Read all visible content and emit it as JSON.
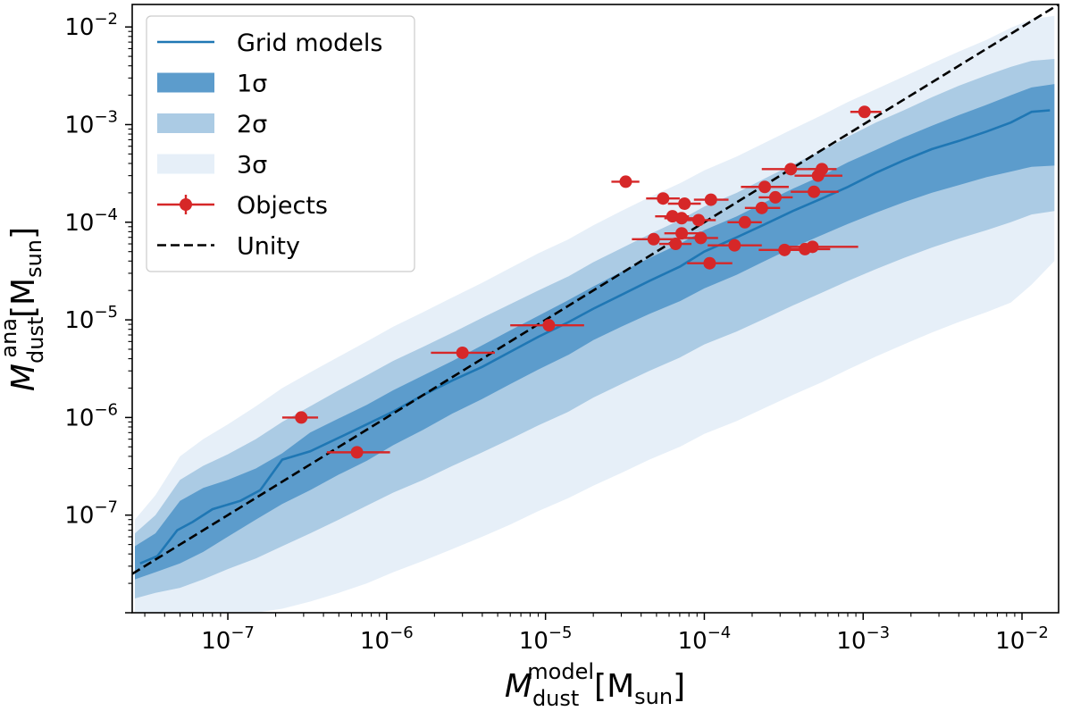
{
  "chart_data": {
    "type": "scatter",
    "xscale": "log",
    "yscale": "log",
    "xlim": [
      2.5e-08,
      0.017
    ],
    "ylim": [
      1e-08,
      0.017
    ],
    "grid": false,
    "legend_position": "top-left",
    "xlabel": {
      "symbol": "M",
      "sub": "dust",
      "sup": "model",
      "unit_open": "[M",
      "unit_sub": "sun",
      "unit_close": "]"
    },
    "ylabel": {
      "symbol": "M",
      "sub": "dust",
      "sup": "ana",
      "unit_open": "[M",
      "unit_sub": "sun",
      "unit_close": "]"
    },
    "xticks": [
      {
        "value": 1e-07,
        "base": "10",
        "exp": "−7"
      },
      {
        "value": 1e-06,
        "base": "10",
        "exp": "−6"
      },
      {
        "value": 1e-05,
        "base": "10",
        "exp": "−5"
      },
      {
        "value": 0.0001,
        "base": "10",
        "exp": "−4"
      },
      {
        "value": 0.001,
        "base": "10",
        "exp": "−3"
      },
      {
        "value": 0.01,
        "base": "10",
        "exp": "−2"
      }
    ],
    "yticks": [
      {
        "value": 1e-07,
        "base": "10",
        "exp": "−7"
      },
      {
        "value": 1e-06,
        "base": "10",
        "exp": "−6"
      },
      {
        "value": 1e-05,
        "base": "10",
        "exp": "−5"
      },
      {
        "value": 0.0001,
        "base": "10",
        "exp": "−4"
      },
      {
        "value": 0.001,
        "base": "10",
        "exp": "−3"
      },
      {
        "value": 0.01,
        "base": "10",
        "exp": "−2"
      }
    ],
    "legend": [
      {
        "key": "grid",
        "label": "Grid models",
        "kind": "line"
      },
      {
        "key": "s1",
        "label": "1σ",
        "kind": "band"
      },
      {
        "key": "s2",
        "label": "2σ",
        "kind": "band"
      },
      {
        "key": "s3",
        "label": "3σ",
        "kind": "band"
      },
      {
        "key": "objects",
        "label": "Objects",
        "kind": "errorbar"
      },
      {
        "key": "unity",
        "label": "Unity",
        "kind": "dashed"
      }
    ],
    "colors": {
      "grid_line": "#1f77b4",
      "band_1sigma": "#5c9ccc",
      "band_2sigma": "#abcbe4",
      "band_3sigma": "#e6eff8",
      "objects": "#d62728",
      "unity": "#000000"
    },
    "series": [
      {
        "key": "grid",
        "x": [
          2.8e-08,
          3.6e-08,
          4.8e-08,
          6e-08,
          8e-08,
          1.2e-07,
          1.6e-07,
          2.2e-07,
          3.3e-07,
          5e-07,
          7.5e-07,
          1.1e-06,
          1.7e-06,
          2.6e-06,
          4e-06,
          6e-06,
          9e-06,
          1.4e-05,
          2e-05,
          3e-05,
          4.5e-05,
          7e-05,
          0.0001,
          0.00016,
          0.00024,
          0.00036,
          0.00055,
          0.0008,
          0.0012,
          0.0018,
          0.0027,
          0.004,
          0.006,
          0.0085,
          0.0115,
          0.015
        ],
        "y": [
          3.2e-08,
          3.8e-08,
          7e-08,
          8.5e-08,
          1.15e-07,
          1.4e-07,
          1.8e-07,
          3.7e-07,
          4.5e-07,
          6.2e-07,
          8.5e-07,
          1.15e-06,
          1.7e-06,
          2.4e-06,
          3.3e-06,
          4.7e-06,
          6.7e-06,
          9.5e-06,
          1.3e-05,
          1.8e-05,
          2.5e-05,
          3.5e-05,
          5e-05,
          7e-05,
          9.5e-05,
          0.00013,
          0.000175,
          0.00023,
          0.00032,
          0.00043,
          0.00056,
          0.00068,
          0.00085,
          0.00105,
          0.00135,
          0.0014
        ]
      },
      {
        "key": "unity",
        "x": [
          2.5e-08,
          0.017
        ],
        "y": [
          2.5e-08,
          0.017
        ]
      }
    ],
    "bands": {
      "x": [
        2.6e-08,
        3.5e-08,
        5e-08,
        7e-08,
        1e-07,
        1.5e-07,
        2.2e-07,
        3.3e-07,
        5e-07,
        7.5e-07,
        1.1e-06,
        1.7e-06,
        2.6e-06,
        4e-06,
        6e-06,
        9e-06,
        1.4e-05,
        2e-05,
        3e-05,
        4.5e-05,
        7e-05,
        0.0001,
        0.00016,
        0.00024,
        0.00036,
        0.00055,
        0.0008,
        0.0012,
        0.0018,
        0.0027,
        0.004,
        0.006,
        0.0085,
        0.0115,
        0.016
      ],
      "s1_lo": [
        2.2e-08,
        2.6e-08,
        3.2e-08,
        4.2e-08,
        6e-08,
        9e-08,
        1.3e-07,
        1.8e-07,
        2.6e-07,
        3.6e-07,
        5.2e-07,
        7.5e-07,
        1.1e-06,
        1.55e-06,
        2.2e-06,
        3.1e-06,
        4.4e-06,
        6.2e-06,
        8.5e-06,
        1.15e-05,
        1.55e-05,
        2.1e-05,
        2.9e-05,
        4e-05,
        5.5e-05,
        7.4e-05,
        9.6e-05,
        0.000125,
        0.00016,
        0.0002,
        0.00024,
        0.00029,
        0.00033,
        0.00037,
        0.00038
      ],
      "s1_hi": [
        4.8e-08,
        6.5e-08,
        1.4e-07,
        1.9e-07,
        2.3e-07,
        3e-07,
        4.3e-07,
        7e-07,
        9.8e-07,
        1.35e-06,
        1.9e-06,
        2.7e-06,
        3.8e-06,
        5.5e-06,
        7.8e-06,
        1.1e-05,
        1.6e-05,
        2.2e-05,
        3.1e-05,
        4.3e-05,
        6e-05,
        8.3e-05,
        0.000115,
        0.00016,
        0.00022,
        0.0003,
        0.00041,
        0.00055,
        0.00074,
        0.00097,
        0.00125,
        0.0016,
        0.002,
        0.0024,
        0.0026
      ],
      "s2_lo": [
        1.4e-08,
        1.6e-08,
        1.8e-08,
        2.2e-08,
        2.8e-08,
        3.6e-08,
        4.8e-08,
        6.5e-08,
        9e-08,
        1.25e-07,
        1.7e-07,
        2.3e-07,
        3.2e-07,
        4.4e-07,
        6e-07,
        8.3e-07,
        1.15e-06,
        1.6e-06,
        2.2e-06,
        3e-06,
        4.1e-06,
        5.6e-06,
        7.6e-06,
        1.03e-05,
        1.4e-05,
        1.9e-05,
        2.5e-05,
        3.3e-05,
        4.3e-05,
        5.5e-05,
        6.8e-05,
        8.3e-05,
        0.0001,
        0.00012,
        0.00013
      ],
      "s2_hi": [
        6.5e-08,
        1e-07,
        2.3e-07,
        3.2e-07,
        4.2e-07,
        6e-07,
        9e-07,
        1.3e-06,
        1.9e-06,
        2.7e-06,
        3.8e-06,
        5.3e-06,
        7.4e-06,
        1.05e-05,
        1.45e-05,
        2e-05,
        2.8e-05,
        3.9e-05,
        5.4e-05,
        7.5e-05,
        0.000105,
        0.000145,
        0.0002,
        0.00028,
        0.00039,
        0.00054,
        0.00075,
        0.00105,
        0.0014,
        0.0019,
        0.0025,
        0.0032,
        0.0039,
        0.0045,
        0.0047
      ],
      "s3_lo": [
        1e-08,
        1e-08,
        1e-08,
        1e-08,
        1e-08,
        1e-08,
        1.1e-08,
        1.3e-08,
        1.6e-08,
        2e-08,
        2.6e-08,
        3.4e-08,
        4.5e-08,
        6e-08,
        8e-08,
        1.1e-07,
        1.5e-07,
        2e-07,
        2.7e-07,
        3.7e-07,
        5e-07,
        6.8e-07,
        9.2e-07,
        1.25e-06,
        1.7e-06,
        2.3e-06,
        3.1e-06,
        4.2e-06,
        5.6e-06,
        7.4e-06,
        9.5e-06,
        1.2e-05,
        1.5e-05,
        2.3e-05,
        4e-05
      ],
      "s3_hi": [
        9e-08,
        1.6e-07,
        4e-07,
        6e-07,
        8.5e-07,
        1.3e-06,
        2e-06,
        2.9e-06,
        4.2e-06,
        6e-06,
        8.5e-06,
        1.2e-05,
        1.7e-05,
        2.4e-05,
        3.4e-05,
        4.8e-05,
        6.7e-05,
        9.3e-05,
        0.00013,
        0.00018,
        0.00025,
        0.00034,
        0.00047,
        0.00065,
        0.0009,
        0.00125,
        0.0017,
        0.0023,
        0.0031,
        0.0042,
        0.0056,
        0.0074,
        0.0098,
        0.012,
        0.013
      ]
    },
    "objects": [
      {
        "x": 2.9e-07,
        "y": 1e-06,
        "xlo": 2.2e-07,
        "xhi": 3.7e-07
      },
      {
        "x": 6.5e-07,
        "y": 4.4e-07,
        "xlo": 4.2e-07,
        "xhi": 1.05e-06
      },
      {
        "x": 3e-06,
        "y": 4.6e-06,
        "xlo": 1.9e-06,
        "xhi": 4.8e-06
      },
      {
        "x": 1.05e-05,
        "y": 8.8e-06,
        "xlo": 6e-06,
        "xhi": 1.75e-05
      },
      {
        "x": 3.2e-05,
        "y": 0.00026,
        "xlo": 2.6e-05,
        "xhi": 3.9e-05
      },
      {
        "x": 4.8e-05,
        "y": 6.7e-05,
        "xlo": 3.5e-05,
        "xhi": 6.5e-05
      },
      {
        "x": 5.5e-05,
        "y": 0.000175,
        "xlo": 4.3e-05,
        "xhi": 7e-05
      },
      {
        "x": 6.3e-05,
        "y": 0.000115,
        "xlo": 4.9e-05,
        "xhi": 8e-05
      },
      {
        "x": 6.6e-05,
        "y": 6e-05,
        "xlo": 5.2e-05,
        "xhi": 8.3e-05
      },
      {
        "x": 7.2e-05,
        "y": 0.00011,
        "xlo": 5.6e-05,
        "xhi": 9.2e-05
      },
      {
        "x": 7.2e-05,
        "y": 7.7e-05,
        "xlo": 5.6e-05,
        "xhi": 9.3e-05
      },
      {
        "x": 7.5e-05,
        "y": 0.000155,
        "xlo": 5.9e-05,
        "xhi": 9.5e-05
      },
      {
        "x": 9.2e-05,
        "y": 0.000105,
        "xlo": 7.2e-05,
        "xhi": 0.000118
      },
      {
        "x": 9.5e-05,
        "y": 6.9e-05,
        "xlo": 7.4e-05,
        "xhi": 0.000122
      },
      {
        "x": 0.000108,
        "y": 3.8e-05,
        "xlo": 7.8e-05,
        "xhi": 0.00015
      },
      {
        "x": 0.00011,
        "y": 0.00017,
        "xlo": 8.6e-05,
        "xhi": 0.000142
      },
      {
        "x": 0.000155,
        "y": 5.8e-05,
        "xlo": 0.000105,
        "xhi": 0.00023
      },
      {
        "x": 0.00018,
        "y": 0.0001,
        "xlo": 0.00014,
        "xhi": 0.00023
      },
      {
        "x": 0.00023,
        "y": 0.00014,
        "xlo": 0.00018,
        "xhi": 0.0003
      },
      {
        "x": 0.00024,
        "y": 0.00023,
        "xlo": 0.00017,
        "xhi": 0.00034
      },
      {
        "x": 0.00028,
        "y": 0.00018,
        "xlo": 0.00022,
        "xhi": 0.00036
      },
      {
        "x": 0.00032,
        "y": 5.2e-05,
        "xlo": 0.00022,
        "xhi": 0.00046
      },
      {
        "x": 0.00035,
        "y": 0.00035,
        "xlo": 0.00023,
        "xhi": 0.00053
      },
      {
        "x": 0.00043,
        "y": 5.3e-05,
        "xlo": 0.0003,
        "xhi": 0.00062
      },
      {
        "x": 0.00048,
        "y": 5.6e-05,
        "xlo": 0.0003,
        "xhi": 0.00093
      },
      {
        "x": 0.00049,
        "y": 0.000205,
        "xlo": 0.00035,
        "xhi": 0.0007
      },
      {
        "x": 0.00052,
        "y": 0.0003,
        "xlo": 0.00037,
        "xhi": 0.00074
      },
      {
        "x": 0.00055,
        "y": 0.00035,
        "xlo": 0.00045,
        "xhi": 0.00068
      },
      {
        "x": 0.00102,
        "y": 0.00135,
        "xlo": 0.00083,
        "xhi": 0.0013
      }
    ]
  }
}
